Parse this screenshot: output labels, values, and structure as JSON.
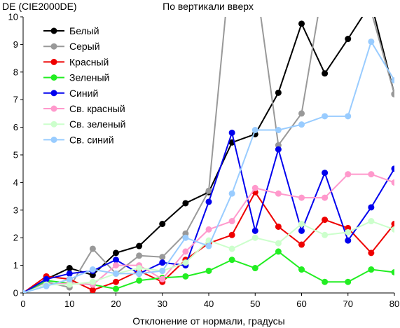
{
  "chart_data": {
    "type": "line",
    "title": "По вертикали вверх",
    "ylabel": "DE (CIE2000DE)",
    "xlabel": "Отклонение от нормали, градусы",
    "xlim": [
      0,
      80
    ],
    "ylim": [
      0,
      10
    ],
    "x_ticks": [
      0,
      10,
      20,
      30,
      40,
      50,
      60,
      70,
      80
    ],
    "y_ticks": [
      0,
      1,
      2,
      3,
      4,
      5,
      6,
      7,
      8,
      9,
      10
    ],
    "grid": false,
    "legend_position": "top-left",
    "x": [
      0,
      5,
      10,
      15,
      20,
      25,
      30,
      35,
      40,
      45,
      50,
      55,
      60,
      65,
      70,
      75,
      80
    ],
    "series": [
      {
        "name": "Белый",
        "color": "#000000",
        "values": [
          0,
          0.5,
          0.9,
          0.65,
          1.45,
          1.7,
          2.5,
          3.25,
          3.65,
          5.45,
          5.75,
          7.25,
          9.75,
          7.95,
          9.2,
          10.5,
          7.2
        ]
      },
      {
        "name": "Серый",
        "color": "#999999",
        "values": [
          0,
          0.4,
          0.2,
          1.6,
          0.7,
          1.35,
          1.3,
          2.15,
          3.7,
          12.5,
          11.5,
          5.35,
          6.5,
          11.5,
          10.4,
          10.2,
          7.2
        ]
      },
      {
        "name": "Красный",
        "color": "#ee0000",
        "values": [
          0,
          0.6,
          0.5,
          0.1,
          0.4,
          0.8,
          0.4,
          1.2,
          1.8,
          2.1,
          3.65,
          2.4,
          1.75,
          2.65,
          2.35,
          1.45,
          2.5
        ]
      },
      {
        "name": "Зеленый",
        "color": "#22ee22",
        "values": [
          0,
          0.45,
          0.35,
          0.3,
          0.15,
          0.45,
          0.55,
          0.6,
          0.8,
          1.2,
          0.9,
          1.5,
          0.85,
          0.4,
          0.4,
          0.85,
          0.75
        ]
      },
      {
        "name": "Синий",
        "color": "#0000ee",
        "values": [
          0,
          0.5,
          0.7,
          0.8,
          1.2,
          0.7,
          1.1,
          1.0,
          3.3,
          5.8,
          2.25,
          5.2,
          2.25,
          4.35,
          1.9,
          3.1,
          4.5
        ]
      },
      {
        "name": "Св. красный",
        "color": "#ff99cc",
        "values": [
          0,
          0.3,
          0.35,
          0.3,
          1.0,
          1.0,
          0.5,
          1.5,
          2.3,
          2.6,
          3.8,
          3.6,
          3.45,
          3.45,
          4.3,
          4.3,
          4.0
        ]
      },
      {
        "name": "Св. зеленый",
        "color": "#ccffcc",
        "values": [
          0,
          0.3,
          0.3,
          0.4,
          0.7,
          0.9,
          0.8,
          1.1,
          1.9,
          1.6,
          2.0,
          1.8,
          2.5,
          2.1,
          2.2,
          2.6,
          2.3
        ]
      },
      {
        "name": "Св. синий",
        "color": "#99ccff",
        "values": [
          0,
          0.25,
          0.5,
          0.85,
          0.7,
          0.7,
          0.8,
          2.0,
          1.7,
          3.6,
          5.9,
          5.9,
          6.1,
          6.4,
          6.4,
          9.1,
          7.7
        ]
      }
    ]
  }
}
